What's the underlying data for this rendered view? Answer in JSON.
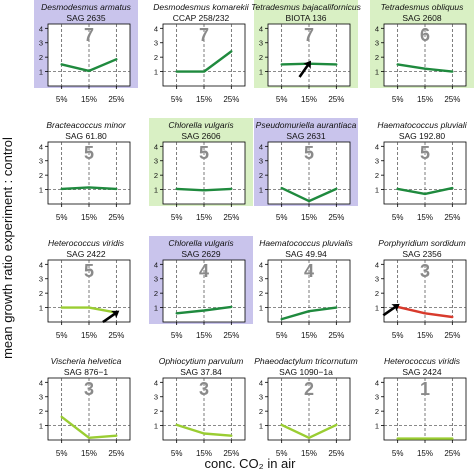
{
  "figure": {
    "ylabel": "mean growth ratio experiment : control",
    "xlabel": "conc. CO₂ in air"
  },
  "colors": {
    "purple": "#c9c4ec",
    "green": "#d9f0c4",
    "white": "#ffffff",
    "dark_green": "#1f8a3e",
    "light_green": "#9acd32",
    "red": "#d83a2c",
    "number": "#8a8a8a"
  },
  "chart_data": [
    {
      "type": "line",
      "title": "Desmodesmus armatus",
      "subtitle": "SAG 2635",
      "rank": "7",
      "bg": "purple",
      "line_color": "dark_green",
      "categories": [
        "5%",
        "15%",
        "25%"
      ],
      "values": [
        1.5,
        1.05,
        1.85
      ],
      "yticks": [
        "1",
        "2",
        "3",
        "4"
      ],
      "ylim": [
        0,
        4.3
      ],
      "reference": 1,
      "arrow": false
    },
    {
      "type": "line",
      "title": "Desmodesmus komarekii",
      "subtitle": "CCAP 258/232",
      "rank": "7",
      "bg": "white",
      "line_color": "dark_green",
      "categories": [
        "5%",
        "15%",
        "25%"
      ],
      "values": [
        1.0,
        1.0,
        2.4
      ],
      "yticks": [
        "1",
        "2",
        "3",
        "4"
      ],
      "ylim": [
        0,
        4.3
      ],
      "reference": 1,
      "arrow": false
    },
    {
      "type": "line",
      "title": "Tetradesmus bajacalifornicus",
      "subtitle": "BIOTA 136",
      "rank": "7",
      "bg": "green",
      "line_color": "dark_green",
      "categories": [
        "5%",
        "15%",
        "25%"
      ],
      "values": [
        1.5,
        1.55,
        1.5
      ],
      "yticks": [
        "1",
        "2",
        "3",
        "4"
      ],
      "ylim": [
        0,
        4.3
      ],
      "reference": 1,
      "arrow": true
    },
    {
      "type": "line",
      "title": "Tetradesmus obliquus",
      "subtitle": "SAG 2608",
      "rank": "6",
      "bg": "green",
      "line_color": "dark_green",
      "categories": [
        "5%",
        "15%",
        "25%"
      ],
      "values": [
        1.5,
        1.2,
        1.0
      ],
      "yticks": [
        "1",
        "2",
        "3",
        "4"
      ],
      "ylim": [
        0,
        4.3
      ],
      "reference": 1,
      "arrow": false
    },
    {
      "type": "line",
      "title": "Bracteacoccus minor",
      "subtitle": "SAG 61.80",
      "rank": "5",
      "bg": "white",
      "line_color": "dark_green",
      "categories": [
        "5%",
        "15%",
        "25%"
      ],
      "values": [
        1.05,
        1.15,
        1.05
      ],
      "yticks": [
        "1",
        "2",
        "3",
        "4"
      ],
      "ylim": [
        0,
        4.3
      ],
      "reference": 1,
      "arrow": false
    },
    {
      "type": "line",
      "title": "Chlorella vulgaris",
      "subtitle": "SAG 2606",
      "rank": "5",
      "bg": "green",
      "line_color": "dark_green",
      "categories": [
        "5%",
        "15%",
        "25%"
      ],
      "values": [
        1.05,
        0.95,
        1.05
      ],
      "yticks": [
        "1",
        "2",
        "3",
        "4"
      ],
      "ylim": [
        0,
        4.3
      ],
      "reference": 1,
      "arrow": false
    },
    {
      "type": "line",
      "title": "Pseudomuriella aurantiaca",
      "subtitle": "SAG 2631",
      "rank": "5",
      "bg": "purple",
      "line_color": "dark_green",
      "categories": [
        "5%",
        "15%",
        "25%"
      ],
      "values": [
        1.1,
        0.2,
        1.05
      ],
      "yticks": [
        "1",
        "2",
        "3",
        "4"
      ],
      "ylim": [
        0,
        4.3
      ],
      "reference": 1,
      "arrow": false
    },
    {
      "type": "line",
      "title": "Haematococcus pluviali",
      "subtitle": "SAG 192.80",
      "rank": "5",
      "bg": "white",
      "line_color": "dark_green",
      "categories": [
        "5%",
        "15%",
        "25%"
      ],
      "values": [
        1.05,
        0.7,
        1.1
      ],
      "yticks": [
        "1",
        "2",
        "3",
        "4"
      ],
      "ylim": [
        0,
        4.3
      ],
      "reference": 1,
      "arrow": false
    },
    {
      "type": "line",
      "title": "Heterococcus viridis",
      "subtitle": "SAG 2422",
      "rank": "5",
      "bg": "white",
      "line_color": "light_green",
      "categories": [
        "5%",
        "15%",
        "25%"
      ],
      "values": [
        1.0,
        1.0,
        0.65
      ],
      "yticks": [
        "1",
        "2",
        "3",
        "4"
      ],
      "ylim": [
        0,
        4.3
      ],
      "reference": 1,
      "arrow": true
    },
    {
      "type": "line",
      "title": "Chlorella vulgaris",
      "subtitle": "SAG 2629",
      "rank": "4",
      "bg": "purple",
      "line_color": "dark_green",
      "categories": [
        "5%",
        "15%",
        "25%"
      ],
      "values": [
        0.6,
        0.8,
        1.05
      ],
      "yticks": [
        "1",
        "2",
        "3",
        "4"
      ],
      "ylim": [
        0,
        4.3
      ],
      "reference": 1,
      "arrow": false
    },
    {
      "type": "line",
      "title": "Haematococcus pluvialis",
      "subtitle": "SAG 49.94",
      "rank": "4",
      "bg": "white",
      "line_color": "dark_green",
      "categories": [
        "5%",
        "15%",
        "25%"
      ],
      "values": [
        0.2,
        0.75,
        1.0
      ],
      "yticks": [
        "1",
        "2",
        "3",
        "4"
      ],
      "ylim": [
        0,
        4.3
      ],
      "reference": 1,
      "arrow": false
    },
    {
      "type": "line",
      "title": "Porphyridium sordidum",
      "subtitle": "SAG 2356",
      "rank": "3",
      "bg": "white",
      "line_color": "red",
      "categories": [
        "5%",
        "15%",
        "25%"
      ],
      "values": [
        1.05,
        0.6,
        0.35
      ],
      "yticks": [
        "1",
        "2",
        "3",
        "4"
      ],
      "ylim": [
        0,
        4.3
      ],
      "reference": 1,
      "arrow": true
    },
    {
      "type": "line",
      "title": "Vischeria helvetica",
      "subtitle": "SAG 876−1",
      "rank": "3",
      "bg": "white",
      "line_color": "light_green",
      "categories": [
        "5%",
        "15%",
        "25%"
      ],
      "values": [
        1.6,
        0.15,
        0.3
      ],
      "yticks": [
        "1",
        "2",
        "3",
        "4"
      ],
      "ylim": [
        0,
        4.3
      ],
      "reference": 1,
      "arrow": false
    },
    {
      "type": "line",
      "title": "Ophiocytium parvulum",
      "subtitle": "SAG 37.84",
      "rank": "3",
      "bg": "white",
      "line_color": "light_green",
      "categories": [
        "5%",
        "15%",
        "25%"
      ],
      "values": [
        1.05,
        0.45,
        0.3
      ],
      "yticks": [
        "1",
        "2",
        "3",
        "4"
      ],
      "ylim": [
        0,
        4.3
      ],
      "reference": 1,
      "arrow": false
    },
    {
      "type": "line",
      "title": "Phaeodactylum tricornutum",
      "subtitle": "SAG 1090−1a",
      "rank": "2",
      "bg": "white",
      "line_color": "light_green",
      "categories": [
        "5%",
        "15%",
        "25%"
      ],
      "values": [
        1.05,
        0.15,
        1.05
      ],
      "yticks": [
        "1",
        "2",
        "3",
        "4"
      ],
      "ylim": [
        0,
        4.3
      ],
      "reference": 1,
      "arrow": false
    },
    {
      "type": "line",
      "title": "Heterococcus viridis",
      "subtitle": "SAG 2424",
      "rank": "1",
      "bg": "white",
      "line_color": "light_green",
      "categories": [
        "5%",
        "15%",
        "25%"
      ],
      "values": [
        0.1,
        0.1,
        0.1
      ],
      "yticks": [
        "1",
        "2",
        "3",
        "4"
      ],
      "ylim": [
        0,
        4.3
      ],
      "reference": 1,
      "arrow": false
    }
  ]
}
